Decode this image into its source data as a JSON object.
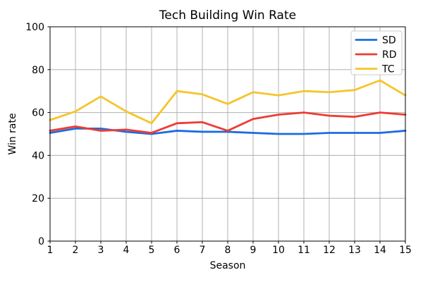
{
  "chart_data": {
    "type": "line",
    "title": "Tech Building Win Rate",
    "xlabel": "Season",
    "ylabel": "Win rate",
    "x": [
      1,
      2,
      3,
      4,
      5,
      6,
      7,
      8,
      9,
      10,
      11,
      12,
      13,
      14,
      15
    ],
    "xlim": [
      1,
      15
    ],
    "ylim": [
      0,
      100
    ],
    "xticks": [
      1,
      2,
      3,
      4,
      5,
      6,
      7,
      8,
      9,
      10,
      11,
      12,
      13,
      14,
      15
    ],
    "yticks": [
      0,
      20,
      40,
      60,
      80,
      100
    ],
    "grid": true,
    "grid_color": "#b0b0b0",
    "spine_color": "#000000",
    "legend_position": "upper right",
    "series": [
      {
        "name": "SD",
        "color": "#1c6ce0",
        "values": [
          50.5,
          52.5,
          52.5,
          51,
          50,
          51.5,
          51,
          51,
          50.5,
          50,
          50,
          50.5,
          50.5,
          50.5,
          51.5
        ]
      },
      {
        "name": "RD",
        "color": "#ee3b33",
        "values": [
          51.5,
          53.5,
          51.5,
          52,
          50.5,
          55,
          55.5,
          51.5,
          57,
          59,
          60,
          58.5,
          58,
          60,
          59
        ]
      },
      {
        "name": "TC",
        "color": "#f5c52b",
        "values": [
          56.5,
          60.5,
          67.5,
          60.5,
          55,
          70,
          68.5,
          64,
          69.5,
          68,
          70,
          69.5,
          70.5,
          75,
          68
        ]
      }
    ]
  }
}
